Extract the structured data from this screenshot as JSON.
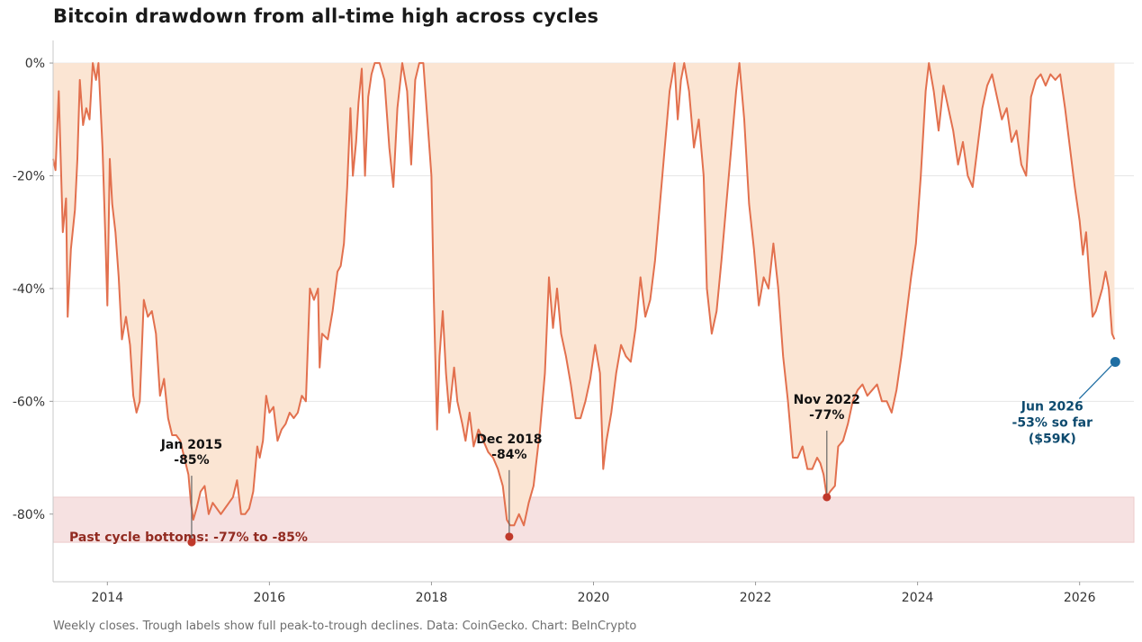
{
  "title": "Bitcoin drawdown from all-time high across cycles",
  "footnote": "Weekly closes. Trough labels show full peak-to-trough declines. Data: CoinGecko. Chart: BeInCrypto",
  "colors": {
    "line": "#e2704e",
    "fill": "#fbe5d3",
    "band": "#f6e1e1",
    "trough_dot": "#c0392b",
    "current_dot": "#1f6ea3",
    "current_text": "#0d4a6e",
    "band_text": "#922b21"
  },
  "chart_data": {
    "type": "area",
    "title": "Bitcoin drawdown from all-time high across cycles",
    "xlabel": "",
    "ylabel": "",
    "xlim": [
      2013.33,
      2026.67
    ],
    "ylim": [
      -92,
      4
    ],
    "x_ticks": [
      2014,
      2016,
      2018,
      2020,
      2022,
      2024,
      2026
    ],
    "x_tick_labels": [
      "2014",
      "2016",
      "2018",
      "2020",
      "2022",
      "2024",
      "2026"
    ],
    "y_ticks": [
      0,
      -20,
      -40,
      -60,
      -80
    ],
    "y_tick_labels": [
      "0%",
      "-20%",
      "-40%",
      "-60%",
      "-80%"
    ],
    "grid": "horizontal",
    "series": [
      {
        "points": [
          [
            2013.33,
            -17
          ],
          [
            2013.36,
            -19
          ],
          [
            2013.4,
            -5
          ],
          [
            2013.45,
            -30
          ],
          [
            2013.49,
            -24
          ],
          [
            2013.51,
            -45
          ],
          [
            2013.55,
            -33
          ],
          [
            2013.6,
            -26
          ],
          [
            2013.63,
            -17
          ],
          [
            2013.66,
            -3
          ],
          [
            2013.7,
            -11
          ],
          [
            2013.74,
            -8
          ],
          [
            2013.78,
            -10
          ],
          [
            2013.82,
            0
          ],
          [
            2013.86,
            -3
          ],
          [
            2013.89,
            0
          ],
          [
            2013.94,
            -15
          ],
          [
            2013.98,
            -33
          ],
          [
            2014.0,
            -43
          ],
          [
            2014.03,
            -17
          ],
          [
            2014.06,
            -25
          ],
          [
            2014.1,
            -30
          ],
          [
            2014.14,
            -38
          ],
          [
            2014.18,
            -49
          ],
          [
            2014.23,
            -45
          ],
          [
            2014.28,
            -50
          ],
          [
            2014.32,
            -59
          ],
          [
            2014.36,
            -62
          ],
          [
            2014.4,
            -60
          ],
          [
            2014.45,
            -42
          ],
          [
            2014.5,
            -45
          ],
          [
            2014.55,
            -44
          ],
          [
            2014.6,
            -48
          ],
          [
            2014.65,
            -59
          ],
          [
            2014.7,
            -56
          ],
          [
            2014.75,
            -63
          ],
          [
            2014.8,
            -66
          ],
          [
            2014.85,
            -66
          ],
          [
            2014.9,
            -67
          ],
          [
            2014.95,
            -70
          ],
          [
            2015.0,
            -73
          ],
          [
            2015.03,
            -78
          ],
          [
            2015.06,
            -81
          ],
          [
            2015.1,
            -79
          ],
          [
            2015.15,
            -76
          ],
          [
            2015.2,
            -75
          ],
          [
            2015.25,
            -80
          ],
          [
            2015.3,
            -78
          ],
          [
            2015.35,
            -79
          ],
          [
            2015.4,
            -80
          ],
          [
            2015.45,
            -79
          ],
          [
            2015.5,
            -78
          ],
          [
            2015.55,
            -77
          ],
          [
            2015.6,
            -74
          ],
          [
            2015.65,
            -80
          ],
          [
            2015.7,
            -80
          ],
          [
            2015.75,
            -79
          ],
          [
            2015.8,
            -76
          ],
          [
            2015.85,
            -68
          ],
          [
            2015.88,
            -70
          ],
          [
            2015.92,
            -67
          ],
          [
            2015.96,
            -59
          ],
          [
            2016.0,
            -62
          ],
          [
            2016.05,
            -61
          ],
          [
            2016.1,
            -67
          ],
          [
            2016.15,
            -65
          ],
          [
            2016.2,
            -64
          ],
          [
            2016.25,
            -62
          ],
          [
            2016.3,
            -63
          ],
          [
            2016.35,
            -62
          ],
          [
            2016.4,
            -59
          ],
          [
            2016.45,
            -60
          ],
          [
            2016.5,
            -40
          ],
          [
            2016.55,
            -42
          ],
          [
            2016.6,
            -40
          ],
          [
            2016.62,
            -54
          ],
          [
            2016.65,
            -48
          ],
          [
            2016.72,
            -49
          ],
          [
            2016.78,
            -44
          ],
          [
            2016.84,
            -37
          ],
          [
            2016.88,
            -36
          ],
          [
            2016.92,
            -32
          ],
          [
            2016.96,
            -22
          ],
          [
            2017.0,
            -8
          ],
          [
            2017.03,
            -20
          ],
          [
            2017.07,
            -14
          ],
          [
            2017.1,
            -7
          ],
          [
            2017.14,
            -1
          ],
          [
            2017.18,
            -20
          ],
          [
            2017.22,
            -6
          ],
          [
            2017.26,
            -2
          ],
          [
            2017.3,
            0
          ],
          [
            2017.36,
            0
          ],
          [
            2017.42,
            -3
          ],
          [
            2017.48,
            -15
          ],
          [
            2017.53,
            -22
          ],
          [
            2017.58,
            -8
          ],
          [
            2017.64,
            0
          ],
          [
            2017.7,
            -5
          ],
          [
            2017.75,
            -18
          ],
          [
            2017.8,
            -3
          ],
          [
            2017.85,
            0
          ],
          [
            2017.9,
            0
          ],
          [
            2017.96,
            -12
          ],
          [
            2018.0,
            -20
          ],
          [
            2018.03,
            -42
          ],
          [
            2018.07,
            -65
          ],
          [
            2018.1,
            -52
          ],
          [
            2018.14,
            -44
          ],
          [
            2018.18,
            -55
          ],
          [
            2018.22,
            -62
          ],
          [
            2018.28,
            -54
          ],
          [
            2018.32,
            -60
          ],
          [
            2018.38,
            -64
          ],
          [
            2018.42,
            -67
          ],
          [
            2018.47,
            -62
          ],
          [
            2018.52,
            -68
          ],
          [
            2018.58,
            -65
          ],
          [
            2018.64,
            -67
          ],
          [
            2018.7,
            -69
          ],
          [
            2018.76,
            -70
          ],
          [
            2018.82,
            -72
          ],
          [
            2018.88,
            -75
          ],
          [
            2018.93,
            -81
          ],
          [
            2018.97,
            -82
          ],
          [
            2019.02,
            -82
          ],
          [
            2019.08,
            -80
          ],
          [
            2019.14,
            -82
          ],
          [
            2019.2,
            -78
          ],
          [
            2019.26,
            -75
          ],
          [
            2019.3,
            -70
          ],
          [
            2019.34,
            -65
          ],
          [
            2019.4,
            -55
          ],
          [
            2019.45,
            -38
          ],
          [
            2019.5,
            -47
          ],
          [
            2019.55,
            -40
          ],
          [
            2019.6,
            -48
          ],
          [
            2019.66,
            -52
          ],
          [
            2019.72,
            -57
          ],
          [
            2019.78,
            -63
          ],
          [
            2019.84,
            -63
          ],
          [
            2019.9,
            -60
          ],
          [
            2019.96,
            -56
          ],
          [
            2020.02,
            -50
          ],
          [
            2020.08,
            -55
          ],
          [
            2020.12,
            -72
          ],
          [
            2020.16,
            -67
          ],
          [
            2020.22,
            -62
          ],
          [
            2020.28,
            -55
          ],
          [
            2020.34,
            -50
          ],
          [
            2020.4,
            -52
          ],
          [
            2020.46,
            -53
          ],
          [
            2020.52,
            -47
          ],
          [
            2020.58,
            -38
          ],
          [
            2020.64,
            -45
          ],
          [
            2020.7,
            -42
          ],
          [
            2020.76,
            -35
          ],
          [
            2020.82,
            -25
          ],
          [
            2020.88,
            -15
          ],
          [
            2020.94,
            -5
          ],
          [
            2021.0,
            0
          ],
          [
            2021.04,
            -10
          ],
          [
            2021.08,
            -3
          ],
          [
            2021.12,
            0
          ],
          [
            2021.18,
            -5
          ],
          [
            2021.24,
            -15
          ],
          [
            2021.3,
            -10
          ],
          [
            2021.36,
            -20
          ],
          [
            2021.4,
            -40
          ],
          [
            2021.46,
            -48
          ],
          [
            2021.52,
            -44
          ],
          [
            2021.58,
            -35
          ],
          [
            2021.64,
            -25
          ],
          [
            2021.7,
            -15
          ],
          [
            2021.76,
            -5
          ],
          [
            2021.8,
            0
          ],
          [
            2021.86,
            -10
          ],
          [
            2021.92,
            -25
          ],
          [
            2021.98,
            -33
          ],
          [
            2022.04,
            -43
          ],
          [
            2022.1,
            -38
          ],
          [
            2022.16,
            -40
          ],
          [
            2022.22,
            -32
          ],
          [
            2022.28,
            -40
          ],
          [
            2022.34,
            -52
          ],
          [
            2022.4,
            -60
          ],
          [
            2022.46,
            -70
          ],
          [
            2022.52,
            -70
          ],
          [
            2022.58,
            -68
          ],
          [
            2022.64,
            -72
          ],
          [
            2022.7,
            -72
          ],
          [
            2022.76,
            -70
          ],
          [
            2022.8,
            -71
          ],
          [
            2022.84,
            -73
          ],
          [
            2022.88,
            -77
          ],
          [
            2022.92,
            -76
          ],
          [
            2022.98,
            -75
          ],
          [
            2023.02,
            -68
          ],
          [
            2023.08,
            -67
          ],
          [
            2023.14,
            -64
          ],
          [
            2023.2,
            -60
          ],
          [
            2023.26,
            -58
          ],
          [
            2023.32,
            -57
          ],
          [
            2023.38,
            -59
          ],
          [
            2023.44,
            -58
          ],
          [
            2023.5,
            -57
          ],
          [
            2023.56,
            -60
          ],
          [
            2023.62,
            -60
          ],
          [
            2023.68,
            -62
          ],
          [
            2023.74,
            -58
          ],
          [
            2023.8,
            -52
          ],
          [
            2023.86,
            -45
          ],
          [
            2023.92,
            -38
          ],
          [
            2023.98,
            -32
          ],
          [
            2024.04,
            -20
          ],
          [
            2024.1,
            -5
          ],
          [
            2024.14,
            0
          ],
          [
            2024.2,
            -5
          ],
          [
            2024.26,
            -12
          ],
          [
            2024.32,
            -4
          ],
          [
            2024.38,
            -8
          ],
          [
            2024.44,
            -12
          ],
          [
            2024.5,
            -18
          ],
          [
            2024.56,
            -14
          ],
          [
            2024.62,
            -20
          ],
          [
            2024.68,
            -22
          ],
          [
            2024.74,
            -15
          ],
          [
            2024.8,
            -8
          ],
          [
            2024.86,
            -4
          ],
          [
            2024.92,
            -2
          ],
          [
            2024.98,
            -6
          ],
          [
            2025.04,
            -10
          ],
          [
            2025.1,
            -8
          ],
          [
            2025.16,
            -14
          ],
          [
            2025.22,
            -12
          ],
          [
            2025.28,
            -18
          ],
          [
            2025.34,
            -20
          ],
          [
            2025.4,
            -6
          ],
          [
            2025.46,
            -3
          ],
          [
            2025.52,
            -2
          ],
          [
            2025.58,
            -4
          ],
          [
            2025.64,
            -2
          ],
          [
            2025.7,
            -3
          ],
          [
            2025.76,
            -2
          ],
          [
            2025.82,
            -8
          ],
          [
            2025.88,
            -15
          ],
          [
            2025.94,
            -22
          ],
          [
            2026.0,
            -28
          ],
          [
            2026.04,
            -34
          ],
          [
            2026.08,
            -30
          ],
          [
            2026.12,
            -38
          ],
          [
            2026.16,
            -45
          ],
          [
            2026.2,
            -44
          ],
          [
            2026.24,
            -42
          ],
          [
            2026.28,
            -40
          ],
          [
            2026.32,
            -37
          ],
          [
            2026.36,
            -40
          ],
          [
            2026.4,
            -48
          ],
          [
            2026.43,
            -49
          ]
        ]
      }
    ],
    "band": {
      "from": -77,
      "to": -85,
      "label": "Past cycle bottoms: -77% to -85%"
    },
    "annotations": [
      {
        "x": 2015.04,
        "y": -85,
        "line1": "Jan 2015",
        "line2": "-85%"
      },
      {
        "x": 2018.96,
        "y": -84,
        "line1": "Dec 2018",
        "line2": "-84%"
      },
      {
        "x": 2022.88,
        "y": -77,
        "line1": "Nov 2022",
        "line2": "-77%"
      }
    ],
    "current": {
      "x": 2026.44,
      "y": -53,
      "line1": "Jun 2026",
      "line2": "-53% so far",
      "line3": "($59K)"
    }
  }
}
